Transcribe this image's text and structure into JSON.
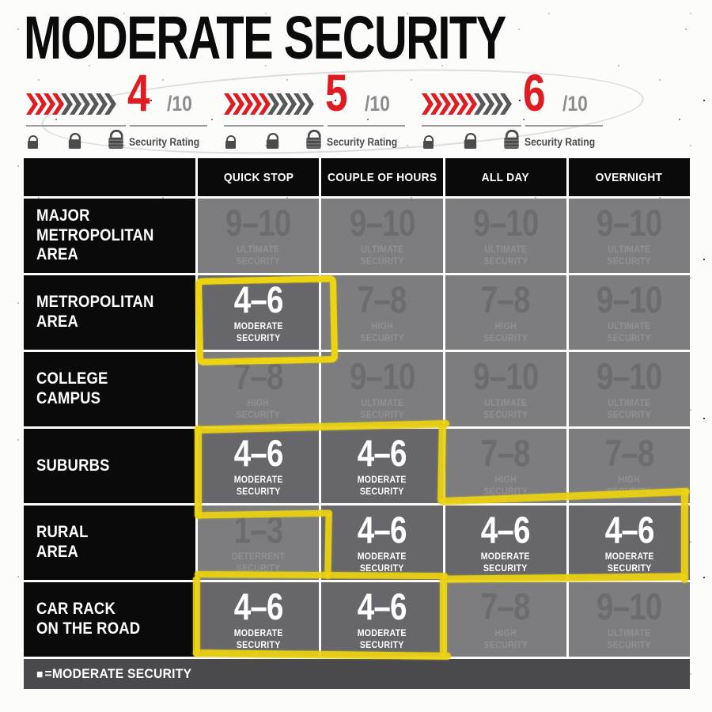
{
  "title": "MODERATE SECURITY",
  "meters": [
    {
      "score": "4",
      "denominator": "/10",
      "filled": 4,
      "total": 10,
      "caption": "Security Rating"
    },
    {
      "score": "5",
      "denominator": "/10",
      "filled": 5,
      "total": 10,
      "caption": "Security Rating"
    },
    {
      "score": "6",
      "denominator": "/10",
      "filled": 6,
      "total": 10,
      "caption": "Security Rating"
    }
  ],
  "legend": {
    "swatch": "■",
    "label": "=MODERATE SECURITY"
  },
  "colors": {
    "accent_red": "#e01b22",
    "marker_yellow": "#ecd412",
    "table_black": "#0a0a0a",
    "cell_dim_bg": "#7d7d80",
    "cell_dim_text": "#6b6c6f",
    "cell_highlight_bg": "#67676b",
    "cell_highlight_text": "#ffffff",
    "legend_bar_bg": "#4a4a4c",
    "chevron_gray": "#58585a"
  },
  "chart_data": {
    "type": "table",
    "title": "MODERATE SECURITY",
    "note": "Yellow marker traces the 4–6 MODERATE SECURITY cells; highlight=true marks them",
    "columns": [
      "QUICK STOP",
      "COUPLE OF HOURS",
      "ALL DAY",
      "OVERNIGHT"
    ],
    "rows": [
      {
        "label": "MAJOR\nMETROPOLITAN\nAREA",
        "cells": [
          {
            "range": "9–10",
            "level": "ULTIMATE\nSECURITY",
            "highlight": false
          },
          {
            "range": "9–10",
            "level": "ULTIMATE\nSECURITY",
            "highlight": false
          },
          {
            "range": "9–10",
            "level": "ULTIMATE\nSECURITY",
            "highlight": false
          },
          {
            "range": "9–10",
            "level": "ULTIMATE\nSECURITY",
            "highlight": false
          }
        ]
      },
      {
        "label": "METROPOLITAN\nAREA",
        "cells": [
          {
            "range": "4–6",
            "level": "MODERATE\nSECURITY",
            "highlight": true
          },
          {
            "range": "7–8",
            "level": "HIGH\nSECURITY",
            "highlight": false
          },
          {
            "range": "7–8",
            "level": "HIGH\nSECURITY",
            "highlight": false
          },
          {
            "range": "9–10",
            "level": "ULTIMATE\nSECURITY",
            "highlight": false
          }
        ]
      },
      {
        "label": "COLLEGE\nCAMPUS",
        "cells": [
          {
            "range": "7–8",
            "level": "HIGH\nSECURITY",
            "highlight": false
          },
          {
            "range": "9–10",
            "level": "ULTIMATE\nSECURITY",
            "highlight": false
          },
          {
            "range": "9–10",
            "level": "ULTIMATE\nSECURITY",
            "highlight": false
          },
          {
            "range": "9–10",
            "level": "ULTIMATE\nSECURITY",
            "highlight": false
          }
        ]
      },
      {
        "label": "SUBURBS",
        "cells": [
          {
            "range": "4–6",
            "level": "MODERATE\nSECURITY",
            "highlight": true
          },
          {
            "range": "4–6",
            "level": "MODERATE\nSECURITY",
            "highlight": true
          },
          {
            "range": "7–8",
            "level": "HIGH\nSECURITY",
            "highlight": false
          },
          {
            "range": "7–8",
            "level": "HIGH\nSECURITY",
            "highlight": false
          }
        ]
      },
      {
        "label": "RURAL\nAREA",
        "cells": [
          {
            "range": "1–3",
            "level": "DETERRENT\nSECURITY",
            "highlight": false
          },
          {
            "range": "4–6",
            "level": "MODERATE\nSECURITY",
            "highlight": true
          },
          {
            "range": "4–6",
            "level": "MODERATE\nSECURITY",
            "highlight": true
          },
          {
            "range": "4–6",
            "level": "MODERATE\nSECURITY",
            "highlight": true
          }
        ]
      },
      {
        "label": "CAR RACK\nON THE ROAD",
        "cells": [
          {
            "range": "4–6",
            "level": "MODERATE\nSECURITY",
            "highlight": true
          },
          {
            "range": "4–6",
            "level": "MODERATE\nSECURITY",
            "highlight": true
          },
          {
            "range": "7–8",
            "level": "HIGH\nSECURITY",
            "highlight": false
          },
          {
            "range": "9–10",
            "level": "ULTIMATE\nSECURITY",
            "highlight": false
          }
        ]
      }
    ]
  }
}
